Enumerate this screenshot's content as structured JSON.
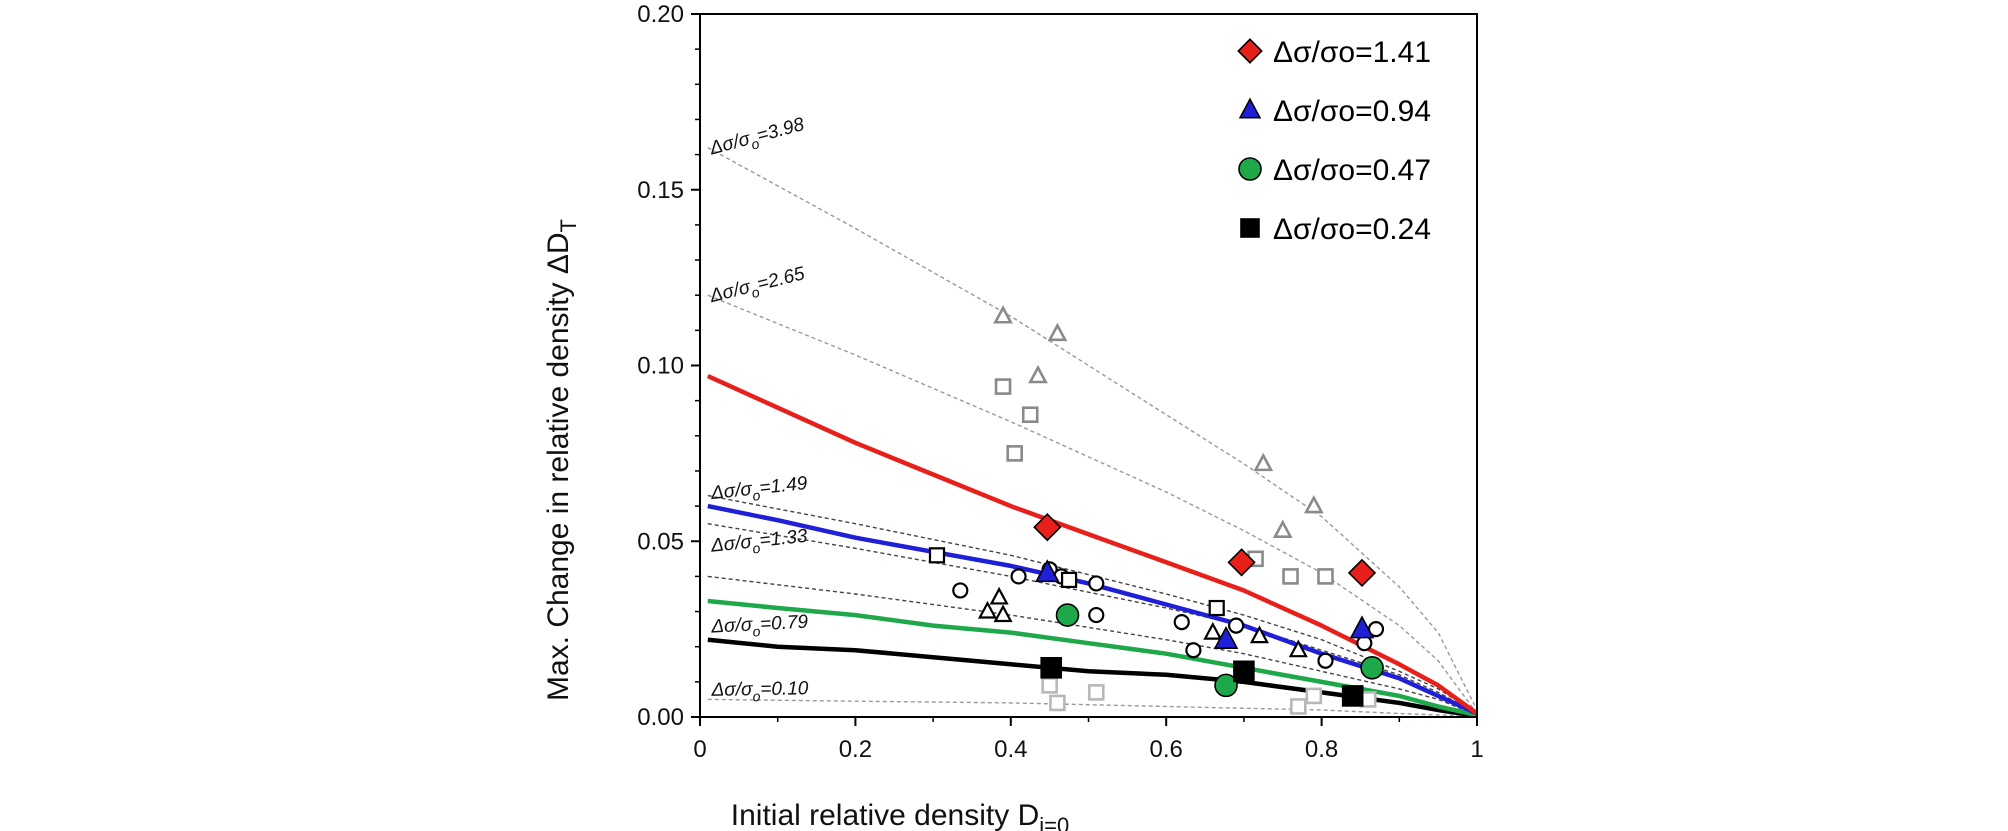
{
  "chart_data": {
    "type": "scatter",
    "title": "",
    "xlabel": {
      "main": "Initial relative density D",
      "sub": "i=0"
    },
    "ylabel": {
      "main": "Max. Change in relative density ΔD",
      "sub": "T"
    },
    "xlim": [
      0,
      1
    ],
    "ylim": [
      0,
      0.2
    ],
    "xticks": [
      0,
      0.2,
      0.4,
      0.6,
      0.8,
      1
    ],
    "xtick_labels": [
      "0",
      "0.2",
      "0.4",
      "0.6",
      "0.8",
      "1"
    ],
    "yticks": [
      0,
      0.05,
      0.1,
      0.15,
      0.2
    ],
    "ytick_labels": [
      "0.00",
      "0.05",
      "0.10",
      "0.15",
      "0.20"
    ],
    "legend_position": "top-right",
    "series": [
      {
        "name": "Δσ/σo=1.41",
        "marker": "diamond",
        "color": "#e8201c",
        "points": [
          [
            0.447,
            0.054
          ],
          [
            0.697,
            0.044
          ],
          [
            0.852,
            0.041
          ]
        ],
        "fit": [
          [
            0.01,
            0.097
          ],
          [
            0.1,
            0.088
          ],
          [
            0.2,
            0.078
          ],
          [
            0.3,
            0.069
          ],
          [
            0.4,
            0.06
          ],
          [
            0.5,
            0.052
          ],
          [
            0.6,
            0.044
          ],
          [
            0.7,
            0.036
          ],
          [
            0.8,
            0.026
          ],
          [
            0.9,
            0.015
          ],
          [
            0.95,
            0.009
          ],
          [
            1.0,
            0.001
          ]
        ]
      },
      {
        "name": "Δσ/σo=0.94",
        "marker": "triangle",
        "color": "#1f1fd8",
        "points": [
          [
            0.447,
            0.041
          ],
          [
            0.677,
            0.022
          ],
          [
            0.852,
            0.025
          ]
        ],
        "fit": [
          [
            0.01,
            0.06
          ],
          [
            0.1,
            0.056
          ],
          [
            0.2,
            0.051
          ],
          [
            0.3,
            0.047
          ],
          [
            0.4,
            0.043
          ],
          [
            0.5,
            0.038
          ],
          [
            0.6,
            0.032
          ],
          [
            0.7,
            0.026
          ],
          [
            0.8,
            0.018
          ],
          [
            0.9,
            0.011
          ],
          [
            0.95,
            0.006
          ],
          [
            1.0,
            0.001
          ]
        ]
      },
      {
        "name": "Δσ/σo=0.47",
        "marker": "circle",
        "color": "#1fa84a",
        "points": [
          [
            0.473,
            0.029
          ],
          [
            0.677,
            0.009
          ],
          [
            0.865,
            0.014
          ]
        ],
        "fit": [
          [
            0.01,
            0.033
          ],
          [
            0.1,
            0.031
          ],
          [
            0.2,
            0.029
          ],
          [
            0.3,
            0.026
          ],
          [
            0.4,
            0.024
          ],
          [
            0.5,
            0.021
          ],
          [
            0.6,
            0.018
          ],
          [
            0.7,
            0.014
          ],
          [
            0.8,
            0.01
          ],
          [
            0.9,
            0.006
          ],
          [
            0.95,
            0.003
          ],
          [
            1.0,
            0.0005
          ]
        ]
      },
      {
        "name": "Δσ/σo=0.24",
        "marker": "square",
        "color": "#000000",
        "points": [
          [
            0.452,
            0.014
          ],
          [
            0.7,
            0.013
          ],
          [
            0.84,
            0.006
          ]
        ],
        "fit": [
          [
            0.01,
            0.022
          ],
          [
            0.1,
            0.02
          ],
          [
            0.2,
            0.019
          ],
          [
            0.3,
            0.017
          ],
          [
            0.4,
            0.015
          ],
          [
            0.5,
            0.013
          ],
          [
            0.6,
            0.012
          ],
          [
            0.7,
            0.01
          ],
          [
            0.8,
            0.007
          ],
          [
            0.9,
            0.004
          ],
          [
            0.95,
            0.002
          ],
          [
            1.0,
            0.0003
          ]
        ]
      }
    ],
    "reference_curves": [
      {
        "label": "Δσ/σ",
        "label_sub": "o",
        "label_value": "=3.98",
        "label_at": [
          0.015,
          0.16
        ],
        "label_angle": -15,
        "points": [
          [
            0.01,
            0.162
          ],
          [
            0.2,
            0.139
          ],
          [
            0.4,
            0.114
          ],
          [
            0.6,
            0.086
          ],
          [
            0.7,
            0.072
          ],
          [
            0.8,
            0.057
          ],
          [
            0.9,
            0.037
          ],
          [
            0.95,
            0.024
          ],
          [
            1.0,
            0.002
          ]
        ]
      },
      {
        "label": "Δσ/σ",
        "label_sub": "o",
        "label_value": "=2.65",
        "label_at": [
          0.015,
          0.118
        ],
        "label_angle": -14,
        "points": [
          [
            0.01,
            0.12
          ],
          [
            0.2,
            0.103
          ],
          [
            0.4,
            0.084
          ],
          [
            0.6,
            0.064
          ],
          [
            0.7,
            0.053
          ],
          [
            0.8,
            0.041
          ],
          [
            0.9,
            0.026
          ],
          [
            0.95,
            0.016
          ],
          [
            1.0,
            0.001
          ]
        ]
      },
      {
        "label": "Δσ/σ",
        "label_sub": "o",
        "label_value": "=1.49",
        "label_at": [
          0.015,
          0.062
        ],
        "label_angle": -6,
        "points": [
          [
            0.01,
            0.063
          ],
          [
            0.2,
            0.055
          ],
          [
            0.4,
            0.046
          ],
          [
            0.6,
            0.035
          ],
          [
            0.7,
            0.029
          ],
          [
            0.8,
            0.022
          ],
          [
            0.9,
            0.013
          ],
          [
            0.95,
            0.008
          ],
          [
            1.0,
            0.001
          ]
        ]
      },
      {
        "label": "Δσ/σ",
        "label_sub": "o",
        "label_value": "=1.33",
        "label_at": [
          0.015,
          0.047
        ],
        "label_angle": -6,
        "points": [
          [
            0.01,
            0.055
          ],
          [
            0.2,
            0.048
          ],
          [
            0.4,
            0.04
          ],
          [
            0.6,
            0.031
          ],
          [
            0.7,
            0.026
          ],
          [
            0.8,
            0.019
          ],
          [
            0.9,
            0.012
          ],
          [
            0.95,
            0.007
          ],
          [
            1.0,
            0.001
          ]
        ]
      },
      {
        "label": "Δσ/σ",
        "label_sub": "o",
        "label_value": "=0.79",
        "label_at": [
          0.015,
          0.024
        ],
        "label_angle": -3,
        "points": [
          [
            0.01,
            0.04
          ],
          [
            0.2,
            0.035
          ],
          [
            0.4,
            0.029
          ],
          [
            0.6,
            0.022
          ],
          [
            0.7,
            0.018
          ],
          [
            0.8,
            0.013
          ],
          [
            0.9,
            0.008
          ],
          [
            0.95,
            0.005
          ],
          [
            1.0,
            0.0005
          ]
        ]
      },
      {
        "label": "Δσ/σ",
        "label_sub": "o",
        "label_value": "=0.10",
        "label_at": [
          0.015,
          0.006
        ],
        "label_angle": -1,
        "points": [
          [
            0.01,
            0.005
          ],
          [
            0.2,
            0.0045
          ],
          [
            0.4,
            0.004
          ],
          [
            0.6,
            0.003
          ],
          [
            0.8,
            0.002
          ],
          [
            0.9,
            0.001
          ],
          [
            1.0,
            0.0002
          ]
        ]
      }
    ],
    "open_markers": [
      {
        "marker": "triangle",
        "color": "#8a8a8a",
        "points": [
          [
            0.39,
            0.114
          ],
          [
            0.46,
            0.109
          ],
          [
            0.435,
            0.097
          ],
          [
            0.725,
            0.072
          ],
          [
            0.79,
            0.06
          ],
          [
            0.75,
            0.053
          ]
        ]
      },
      {
        "marker": "square",
        "color": "#8a8a8a",
        "points": [
          [
            0.39,
            0.094
          ],
          [
            0.425,
            0.086
          ],
          [
            0.405,
            0.075
          ],
          [
            0.715,
            0.045
          ],
          [
            0.76,
            0.04
          ],
          [
            0.805,
            0.04
          ]
        ]
      },
      {
        "marker": "triangle",
        "color": "#000000",
        "points": [
          [
            0.385,
            0.034
          ],
          [
            0.37,
            0.03
          ],
          [
            0.39,
            0.029
          ],
          [
            0.66,
            0.024
          ],
          [
            0.72,
            0.023
          ],
          [
            0.77,
            0.019
          ]
        ]
      },
      {
        "marker": "circle",
        "color": "#000000",
        "points": [
          [
            0.335,
            0.036
          ],
          [
            0.41,
            0.04
          ],
          [
            0.45,
            0.042
          ],
          [
            0.465,
            0.04
          ],
          [
            0.51,
            0.038
          ],
          [
            0.51,
            0.029
          ],
          [
            0.62,
            0.027
          ],
          [
            0.635,
            0.019
          ],
          [
            0.69,
            0.026
          ],
          [
            0.805,
            0.016
          ],
          [
            0.855,
            0.021
          ],
          [
            0.87,
            0.025
          ]
        ]
      },
      {
        "marker": "square",
        "color": "#000000",
        "points": [
          [
            0.305,
            0.046
          ],
          [
            0.475,
            0.039
          ],
          [
            0.665,
            0.031
          ]
        ]
      },
      {
        "marker": "square",
        "color": "#b8b8b8",
        "points": [
          [
            0.45,
            0.009
          ],
          [
            0.46,
            0.004
          ],
          [
            0.51,
            0.007
          ],
          [
            0.77,
            0.003
          ],
          [
            0.79,
            0.006
          ],
          [
            0.86,
            0.005
          ]
        ]
      }
    ]
  }
}
